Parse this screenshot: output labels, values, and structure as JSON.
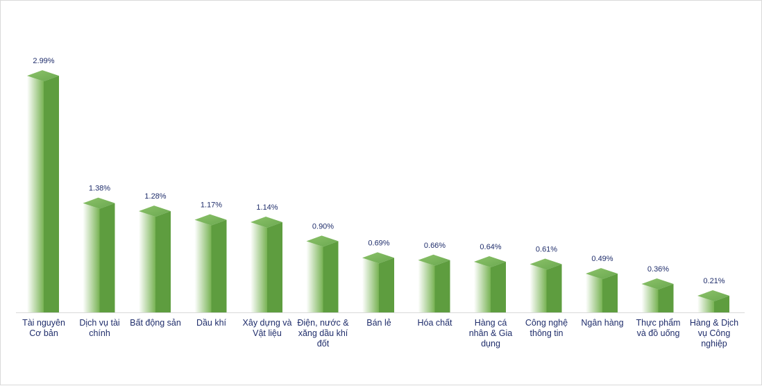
{
  "chart_data": {
    "type": "bar",
    "categories": [
      [
        "Tài nguyên",
        "Cơ bản"
      ],
      [
        "Dịch vụ tài",
        "chính"
      ],
      [
        "Bất động sản"
      ],
      [
        "Dầu khí"
      ],
      [
        "Xây dựng và",
        "Vật liệu"
      ],
      [
        "Điện, nước &",
        "xăng dầu khí",
        "đốt"
      ],
      [
        "Bán lẻ"
      ],
      [
        "Hóa chất"
      ],
      [
        "Hàng cá",
        "nhân & Gia",
        "dụng"
      ],
      [
        "Công nghệ",
        "thông tin"
      ],
      [
        "Ngân hàng"
      ],
      [
        "Thực phẩm",
        "và đồ uống"
      ],
      [
        "Hàng & Dịch",
        "vụ Công",
        "nghiệp"
      ]
    ],
    "values": [
      2.99,
      1.38,
      1.28,
      1.17,
      1.14,
      0.9,
      0.69,
      0.66,
      0.64,
      0.61,
      0.49,
      0.36,
      0.21
    ],
    "value_labels": [
      "2.99%",
      "1.38%",
      "1.28%",
      "1.17%",
      "1.14%",
      "0.90%",
      "0.69%",
      "0.66%",
      "0.64%",
      "0.61%",
      "0.49%",
      "0.36%",
      "0.21%"
    ],
    "ylim": [
      0,
      3.2
    ],
    "grid": false,
    "legend": "none",
    "colors": {
      "top_face": "#6aa84f",
      "top_face_light": "#8cc26a",
      "front_light": "#ffffff",
      "front_dark": "#78b354",
      "side_face": "#5e9d3f",
      "axis": "#d9d9d9",
      "text": "#1f2d6b"
    }
  }
}
